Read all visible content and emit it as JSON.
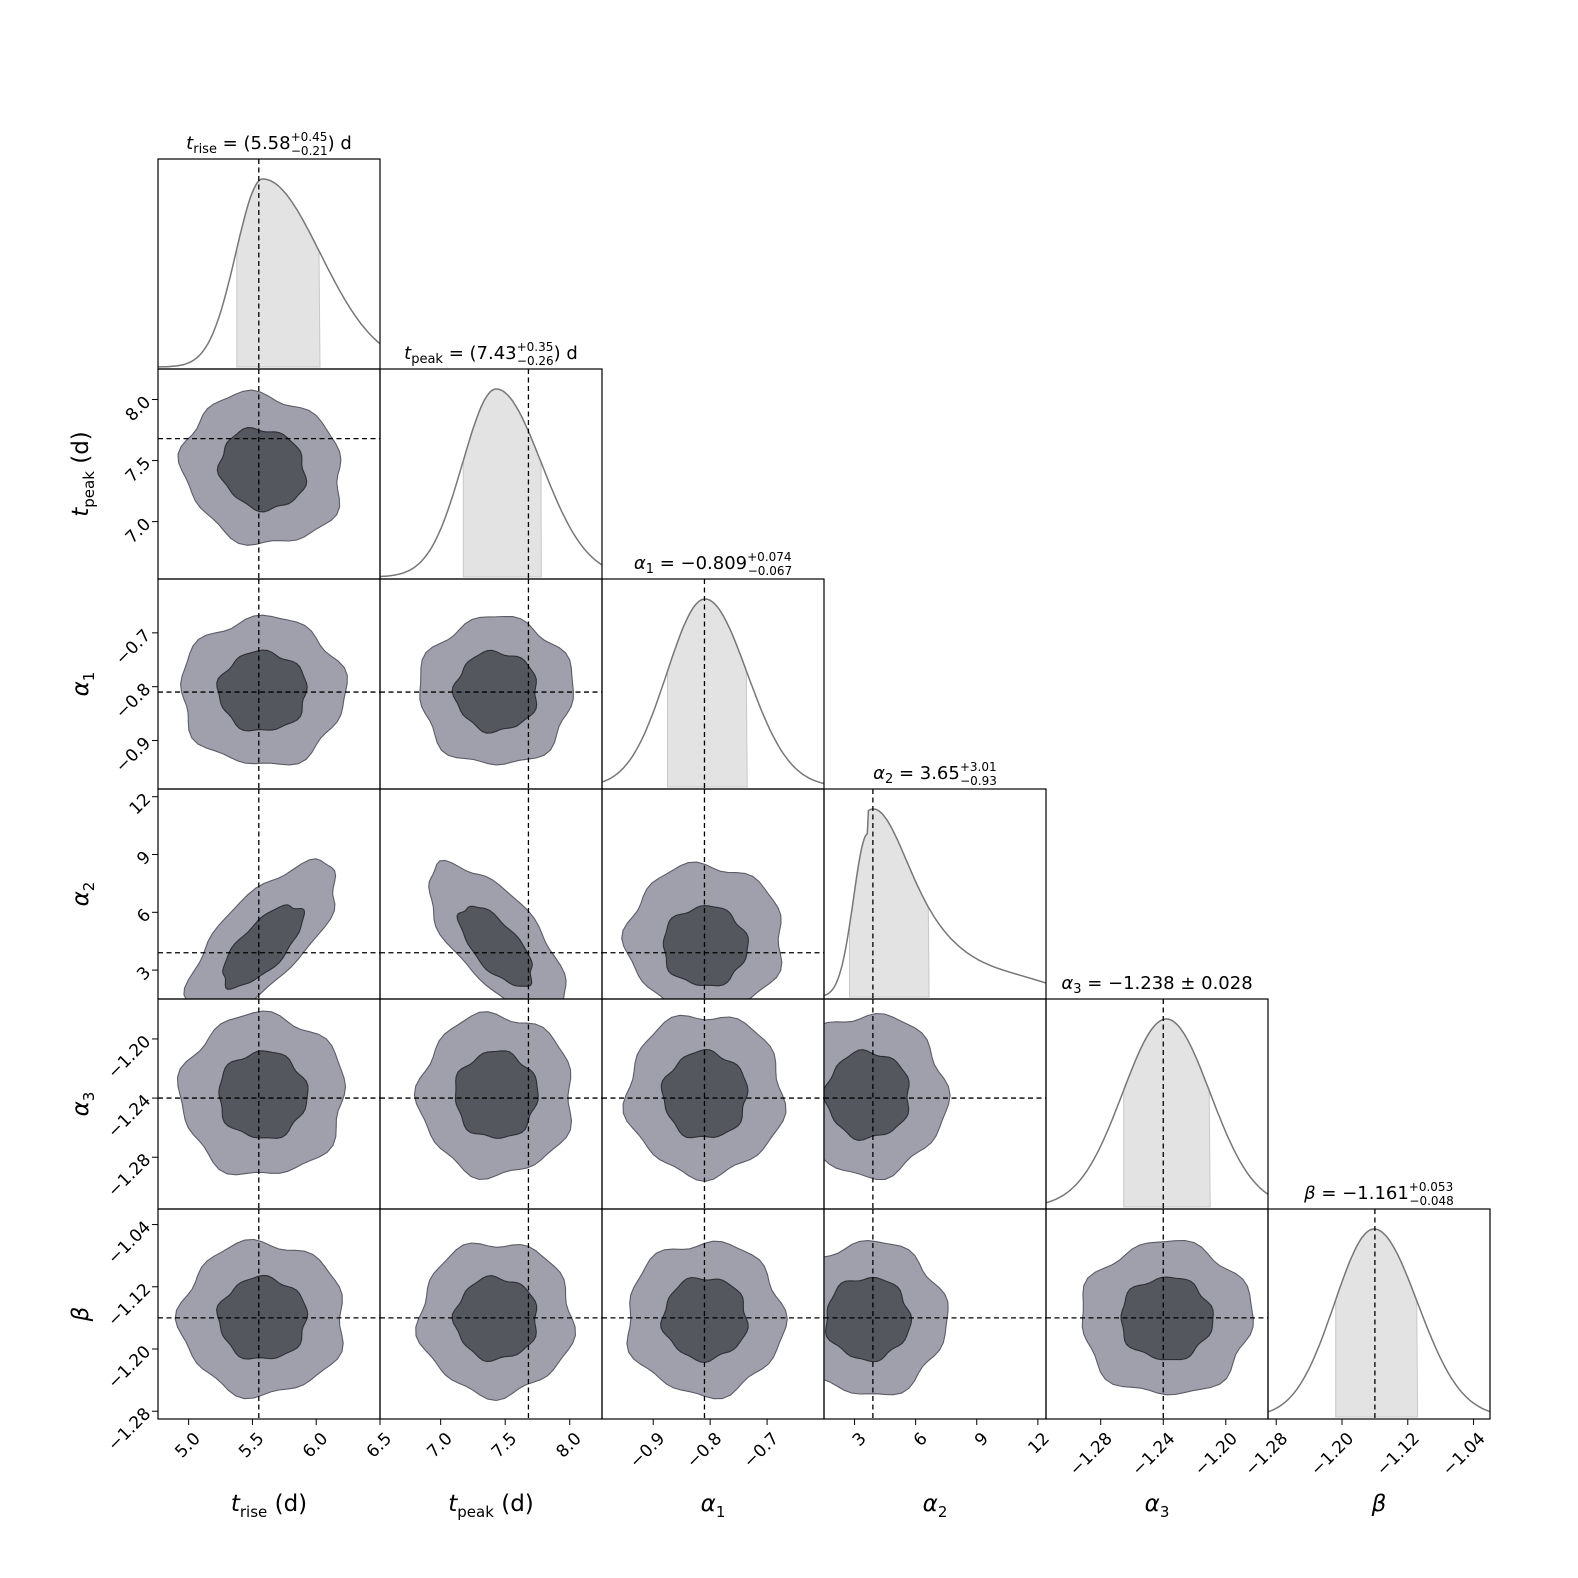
{
  "chart_data": {
    "type": "corner",
    "grid": false,
    "parameters": [
      {
        "key": "t_rise",
        "label_base": "t",
        "label_sub": "rise",
        "unit": "(d)",
        "range": [
          4.76,
          6.5
        ],
        "ticks": [
          5.0,
          5.5,
          6.0,
          6.5
        ],
        "tick_labels": [
          "5.0",
          "5.5",
          "6.0",
          "6.5"
        ],
        "reference": 5.55,
        "median": 5.58,
        "interval": [
          5.37,
          6.03
        ],
        "title_value": "5.58",
        "title_plus": "+0.45",
        "title_minus": "−0.21",
        "title_unit": "d"
      },
      {
        "key": "t_peak",
        "label_base": "t",
        "label_sub": "peak",
        "unit": "(d)",
        "range": [
          6.53,
          8.25
        ],
        "ticks": [
          7.0,
          7.5,
          8.0
        ],
        "tick_labels": [
          "7.0",
          "7.5",
          "8.0"
        ],
        "reference": 7.68,
        "median": 7.43,
        "interval": [
          7.17,
          7.78
        ],
        "title_value": "7.43",
        "title_plus": "+0.35",
        "title_minus": "−0.26",
        "title_unit": "d"
      },
      {
        "key": "alpha_1",
        "label_base": "α",
        "label_sub": "1",
        "unit": "",
        "range": [
          -0.99,
          -0.6
        ],
        "ticks": [
          -0.9,
          -0.8,
          -0.7
        ],
        "tick_labels": [
          "−0.9",
          "−0.8",
          "−0.7"
        ],
        "reference": -0.81,
        "median": -0.809,
        "interval": [
          -0.876,
          -0.735
        ],
        "title_value": "−0.809",
        "title_plus": "+0.074",
        "title_minus": "−0.067"
      },
      {
        "key": "alpha_2",
        "label_base": "α",
        "label_sub": "2",
        "unit": "",
        "range": [
          1.5,
          12.4
        ],
        "ticks": [
          3,
          6,
          9,
          12
        ],
        "tick_labels": [
          "3",
          "6",
          "9",
          "12"
        ],
        "reference": 3.9,
        "median": 3.65,
        "interval": [
          2.72,
          6.66
        ],
        "title_value": "3.65",
        "title_plus": "+3.01",
        "title_minus": "−0.93"
      },
      {
        "key": "alpha_3",
        "label_base": "α",
        "label_sub": "3",
        "unit": "",
        "range": [
          -1.315,
          -1.173
        ],
        "ticks": [
          -1.28,
          -1.24,
          -1.2
        ],
        "tick_labels": [
          "−1.28",
          "−1.24",
          "−1.20"
        ],
        "reference": -1.24,
        "median": -1.238,
        "interval": [
          -1.266,
          -1.21
        ],
        "title_value": "−1.238",
        "title_pm": "0.028"
      },
      {
        "key": "beta",
        "label_base": "β",
        "label_sub": "",
        "unit": "",
        "range": [
          -1.29,
          -1.02
        ],
        "ticks": [
          -1.28,
          -1.2,
          -1.12,
          -1.04
        ],
        "tick_labels": [
          "−1.28",
          "−1.20",
          "−1.12",
          "−1.04"
        ],
        "reference": -1.16,
        "median": -1.161,
        "interval": [
          -1.209,
          -1.108
        ],
        "title_value": "−1.161",
        "title_plus": "+0.053",
        "title_minus": "−0.048"
      }
    ],
    "contour_levels": [
      "68%",
      "95%"
    ],
    "colors": {
      "inner": "#55575e",
      "outer": "#a0a0ad",
      "kde": "#777777",
      "band": "#e3e3e3"
    }
  }
}
